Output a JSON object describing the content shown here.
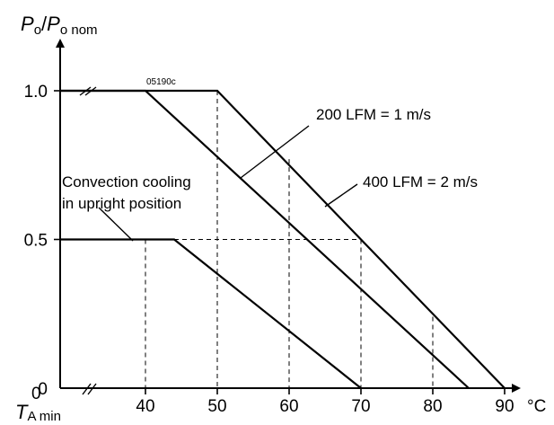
{
  "chart_data": {
    "type": "line",
    "title": "",
    "code": "05190c",
    "ylabel": {
      "main": "P",
      "sub1": "o",
      "sep": "/",
      "main2": "P",
      "sub2": "o nom"
    },
    "xlabel": {
      "main": "T",
      "sub": "A min"
    },
    "x_unit": "°C",
    "x_ticks": [
      "40",
      "50",
      "60",
      "70",
      "80",
      "90"
    ],
    "y_ticks": [
      "1.0",
      "0.5",
      "0"
    ],
    "origin_x_label": "0",
    "xlim": [
      35,
      90
    ],
    "ylim": [
      0,
      1.0
    ],
    "series": [
      {
        "name": "Convection cooling in upright position",
        "x": [
          35,
          44,
          70
        ],
        "y": [
          0.5,
          0.5,
          0
        ]
      },
      {
        "name": "200 LFM = 1 m/s",
        "x": [
          35,
          40,
          85
        ],
        "y": [
          1.0,
          1.0,
          0
        ]
      },
      {
        "name": "400 LFM = 2 m/s",
        "x": [
          35,
          50,
          90
        ],
        "y": [
          1.0,
          1.0,
          0
        ]
      }
    ],
    "annotations": [
      {
        "text_lines": [
          "200 LFM = 1 m/s"
        ]
      },
      {
        "text_lines": [
          "400 LFM = 2 m/s"
        ]
      },
      {
        "text_lines": [
          "Convection cooling",
          "in upright position"
        ]
      }
    ],
    "grid_x": [
      40,
      50,
      60,
      70,
      80
    ],
    "grid_y": [
      0.5
    ],
    "grid": "dashed guide lines"
  }
}
